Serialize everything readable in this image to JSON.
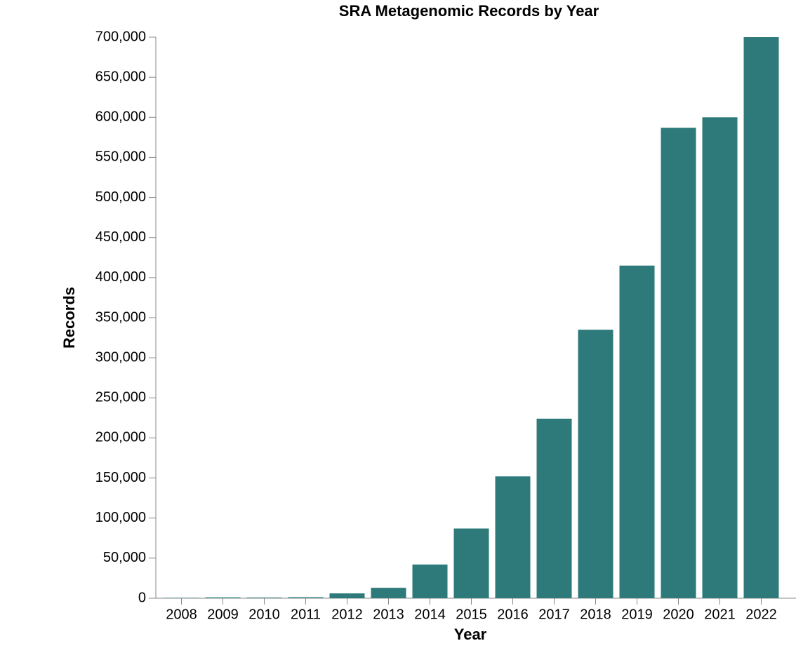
{
  "chart_data": {
    "type": "bar",
    "title": "SRA Metagenomic Records by Year",
    "x_label": "Year",
    "y_label": "Records",
    "categories": [
      "2008",
      "2009",
      "2010",
      "2011",
      "2012",
      "2013",
      "2014",
      "2015",
      "2016",
      "2017",
      "2018",
      "2019",
      "2020",
      "2021",
      "2022"
    ],
    "values": [
      500,
      1000,
      800,
      1200,
      6000,
      13000,
      42000,
      87000,
      152000,
      224000,
      335000,
      415000,
      587000,
      600000,
      700000
    ],
    "color": "#2e7a7a",
    "ylim": [
      0,
      700000
    ],
    "yticks": [
      0,
      {
        "value": 50000,
        "label": "50,000"
      },
      {
        "value": 100000,
        "label": "100,000"
      },
      {
        "value": 150000,
        "label": "150,000"
      },
      {
        "value": 200000,
        "label": "200,000"
      },
      {
        "value": 250000,
        "label": "250,000"
      },
      {
        "value": 300000,
        "label": "300,000"
      },
      {
        "value": 350000,
        "label": "350,000"
      },
      {
        "value": 400000,
        "label": "400,000"
      },
      {
        "value": 450000,
        "label": "450,000"
      },
      {
        "value": 500000,
        "label": "500,000"
      },
      {
        "value": 550000,
        "label": "550,000"
      },
      {
        "value": 600000,
        "label": "600,000"
      },
      {
        "value": 650000,
        "label": "650,000"
      },
      {
        "value": 700000,
        "label": "700,000"
      }
    ],
    "grid": false
  }
}
